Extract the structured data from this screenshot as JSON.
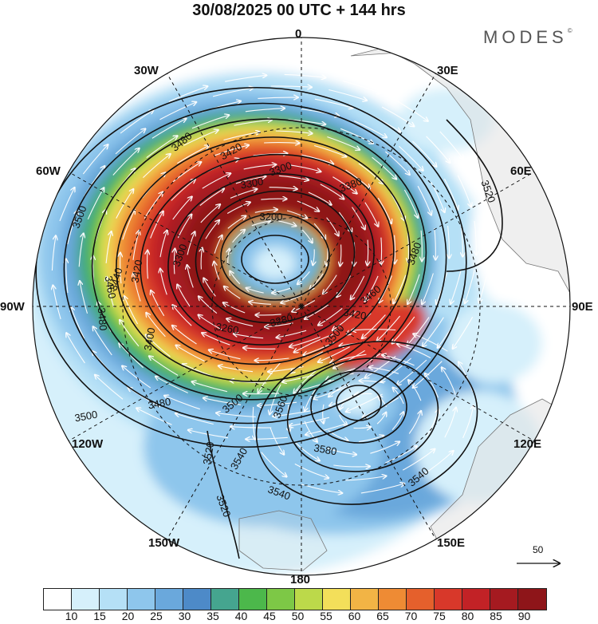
{
  "header": {
    "title": "30/08/2025  00 UTC  + 144 hrs",
    "brand": "MODES",
    "brand_mark": "©"
  },
  "map": {
    "projection": "polar stereographic (north pole)",
    "meridian_labels": [
      "0",
      "30E",
      "60E",
      "90E",
      "120E",
      "150E",
      "180",
      "150W",
      "120W",
      "90W",
      "60W",
      "30W"
    ],
    "contour_labels": [
      {
        "text": "3480",
        "rot": -40
      },
      {
        "text": "3420",
        "rot": -30
      },
      {
        "text": "3200",
        "rot": 0
      },
      {
        "text": "3520",
        "rot": 70
      },
      {
        "text": "3500",
        "rot": -70
      },
      {
        "text": "3460",
        "rot": 80
      },
      {
        "text": "3480",
        "rot": 85
      },
      {
        "text": "3440",
        "rot": -75
      },
      {
        "text": "3420",
        "rot": -80
      },
      {
        "text": "3400",
        "rot": -80
      },
      {
        "text": "3300",
        "rot": -70
      },
      {
        "text": "3300",
        "rot": -10
      },
      {
        "text": "3300",
        "rot": -20
      },
      {
        "text": "3260",
        "rot": 10
      },
      {
        "text": "3280",
        "rot": -15
      },
      {
        "text": "3380",
        "rot": -20
      },
      {
        "text": "3420",
        "rot": 10
      },
      {
        "text": "3460",
        "rot": -40
      },
      {
        "text": "3480",
        "rot": -70
      },
      {
        "text": "3500",
        "rot": -40
      },
      {
        "text": "3480",
        "rot": -10
      },
      {
        "text": "3500",
        "rot": -10
      },
      {
        "text": "3560",
        "rot": -70
      },
      {
        "text": "3580",
        "rot": 10
      },
      {
        "text": "3540",
        "rot": -60
      },
      {
        "text": "3540",
        "rot": 20
      },
      {
        "text": "3540",
        "rot": -40
      },
      {
        "text": "3520",
        "rot": -80
      },
      {
        "text": "3520",
        "rot": 70
      },
      {
        "text": "3500",
        "rot": -50
      }
    ]
  },
  "vector_reference": {
    "label": "50"
  },
  "colorbar": {
    "colors": [
      "#ffffff",
      "#d6f0fb",
      "#b5e0f6",
      "#8ec6ec",
      "#6aa8dc",
      "#4d8ac8",
      "#45a58f",
      "#4cb84b",
      "#7dc846",
      "#bcd94a",
      "#f3df5a",
      "#f2b445",
      "#ee8b34",
      "#e5602c",
      "#d8382a",
      "#c22226",
      "#a51a20",
      "#8e1519"
    ],
    "tick_labels": [
      "10",
      "15",
      "20",
      "25",
      "30",
      "35",
      "40",
      "45",
      "50",
      "55",
      "60",
      "65",
      "70",
      "75",
      "80",
      "85",
      "90"
    ]
  }
}
